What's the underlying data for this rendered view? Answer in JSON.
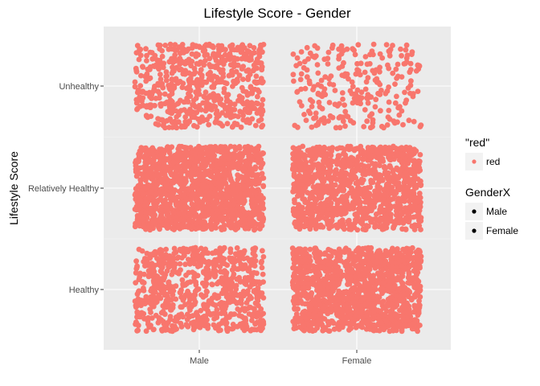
{
  "chart_data": {
    "type": "scatter",
    "jitter": true,
    "title": "Lifestyle Score - Gender",
    "xlabel": "",
    "ylabel": "Lifestyle Score",
    "x_categories": [
      "Male",
      "Female"
    ],
    "y_categories": [
      "Healthy",
      "Relatively Healthy",
      "Unhealthy"
    ],
    "point_color": "#F8766D",
    "panel_background": "#EBEBEB",
    "grid": true,
    "legend_position": "right",
    "cells": [
      {
        "x": "Male",
        "y": "Unhealthy",
        "count": 600
      },
      {
        "x": "Female",
        "y": "Unhealthy",
        "count": 260
      },
      {
        "x": "Male",
        "y": "Relatively Healthy",
        "count": 1500
      },
      {
        "x": "Female",
        "y": "Relatively Healthy",
        "count": 1150
      },
      {
        "x": "Male",
        "y": "Healthy",
        "count": 750
      },
      {
        "x": "Female",
        "y": "Healthy",
        "count": 1350
      }
    ],
    "legends": [
      {
        "title": "\"red\"",
        "key": "color-legend",
        "items": [
          {
            "label": "red",
            "color": "#F8766D"
          }
        ]
      },
      {
        "title": "GenderX",
        "key": "shape-legend",
        "items": [
          {
            "label": "Male",
            "color": "#000000"
          },
          {
            "label": "Female",
            "color": "#000000"
          }
        ]
      }
    ]
  }
}
